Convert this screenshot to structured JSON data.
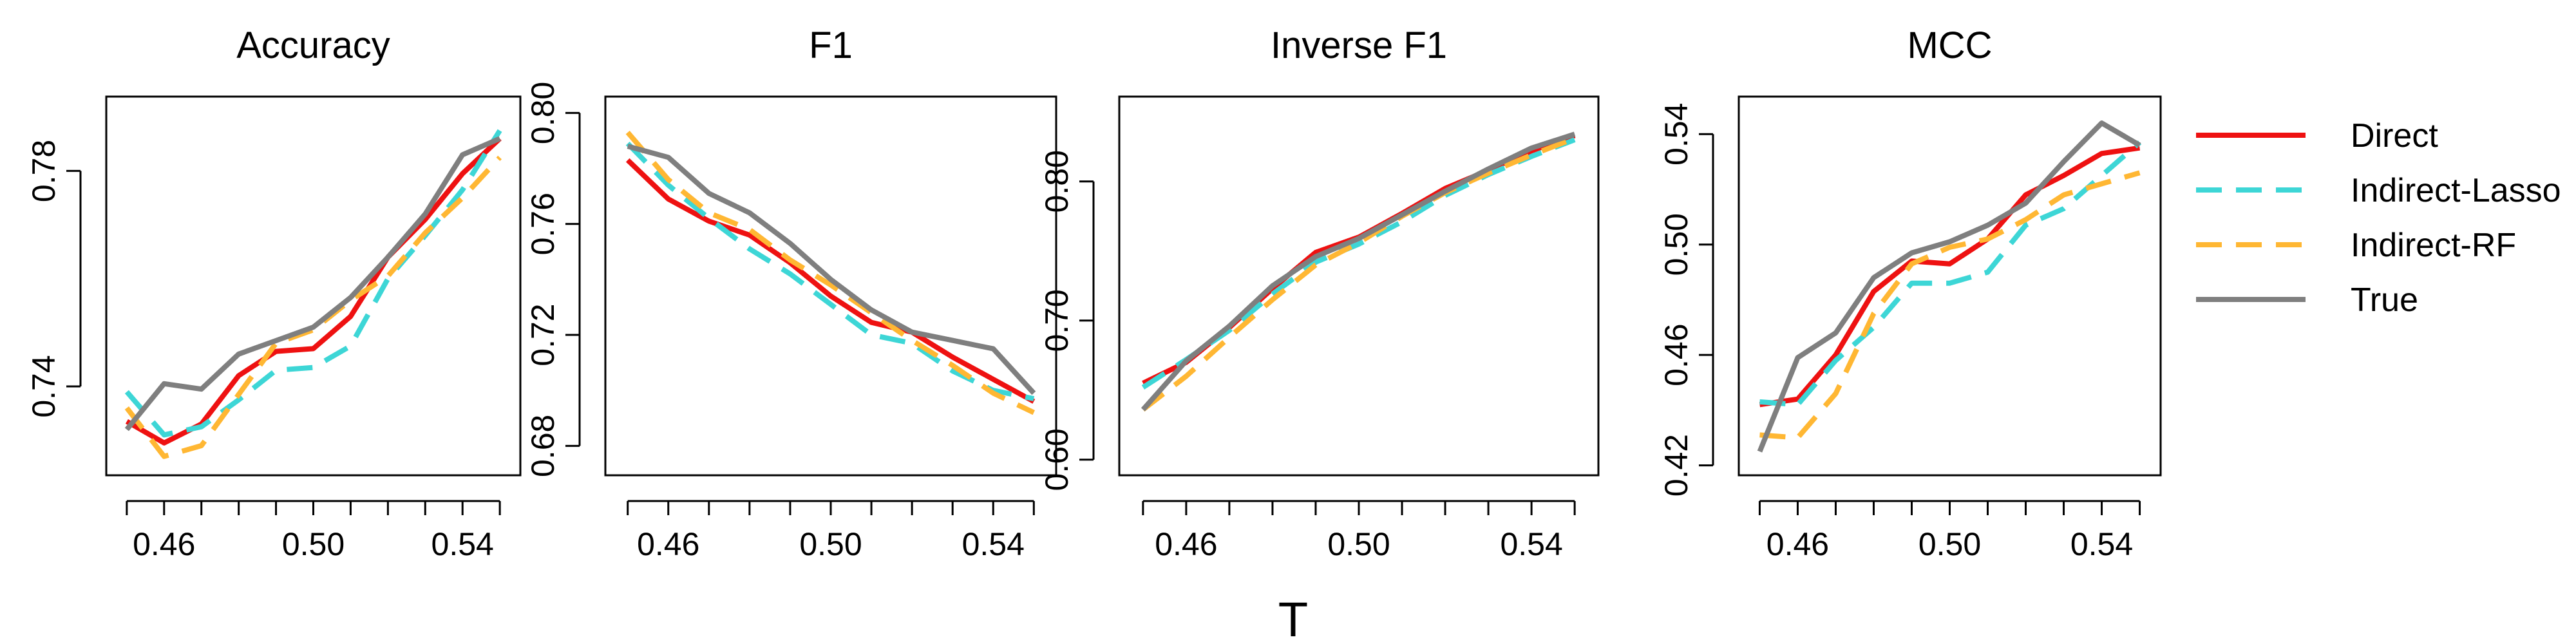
{
  "chart_data": [
    {
      "type": "line",
      "title": "Accuracy",
      "x": [
        0.45,
        0.46,
        0.47,
        0.48,
        0.49,
        0.5,
        0.51,
        0.52,
        0.53,
        0.54,
        0.55
      ],
      "xticks": [
        "0.46",
        "0.50",
        "0.54"
      ],
      "xtick_values": [
        0.46,
        0.5,
        0.54
      ],
      "xlim": [
        0.4445,
        0.5555
      ],
      "yticks": [
        "0.74",
        "0.78"
      ],
      "ytick_values": [
        0.74,
        0.78
      ],
      "ylim": [
        0.7235,
        0.7938
      ],
      "series": [
        {
          "name": "Direct",
          "values": [
            0.7335,
            0.7295,
            0.733,
            0.742,
            0.7465,
            0.747,
            0.753,
            0.764,
            0.771,
            0.7795,
            0.786
          ]
        },
        {
          "name": "Indirect-Lasso",
          "values": [
            0.739,
            0.731,
            0.7325,
            0.7375,
            0.743,
            0.7435,
            0.7475,
            0.76,
            0.768,
            0.7765,
            0.7875
          ]
        },
        {
          "name": "Indirect-RF",
          "values": [
            0.736,
            0.727,
            0.729,
            0.7385,
            0.748,
            0.7505,
            0.756,
            0.7605,
            0.7685,
            0.775,
            0.7825
          ]
        },
        {
          "name": "True",
          "values": [
            0.732,
            0.7405,
            0.7395,
            0.746,
            0.7485,
            0.751,
            0.7565,
            0.764,
            0.772,
            0.783,
            0.786
          ]
        }
      ]
    },
    {
      "type": "line",
      "title": "F1",
      "x": [
        0.45,
        0.46,
        0.47,
        0.48,
        0.49,
        0.5,
        0.51,
        0.52,
        0.53,
        0.54,
        0.55
      ],
      "xticks": [
        "0.46",
        "0.50",
        "0.54"
      ],
      "xtick_values": [
        0.46,
        0.5,
        0.54
      ],
      "xlim": [
        0.4445,
        0.5555
      ],
      "yticks": [
        "0.68",
        "0.72",
        "0.76",
        "0.80"
      ],
      "ytick_values": [
        0.68,
        0.72,
        0.76,
        0.8
      ],
      "ylim": [
        0.6694,
        0.8059
      ],
      "series": [
        {
          "name": "Direct",
          "values": [
            0.783,
            0.769,
            0.761,
            0.756,
            0.746,
            0.734,
            0.7245,
            0.721,
            0.712,
            0.704,
            0.696
          ]
        },
        {
          "name": "Indirect-Lasso",
          "values": [
            0.789,
            0.774,
            0.762,
            0.751,
            0.742,
            0.731,
            0.72,
            0.717,
            0.707,
            0.7,
            0.697
          ]
        },
        {
          "name": "Indirect-RF",
          "values": [
            0.793,
            0.776,
            0.764,
            0.758,
            0.747,
            0.738,
            0.728,
            0.718,
            0.709,
            0.699,
            0.692
          ]
        },
        {
          "name": "True",
          "values": [
            0.788,
            0.784,
            0.771,
            0.764,
            0.753,
            0.74,
            0.729,
            0.721,
            0.718,
            0.715,
            0.699
          ]
        }
      ]
    },
    {
      "type": "line",
      "title": "Inverse F1",
      "x": [
        0.45,
        0.46,
        0.47,
        0.48,
        0.49,
        0.5,
        0.51,
        0.52,
        0.53,
        0.54,
        0.55
      ],
      "xticks": [
        "0.46",
        "0.50",
        "0.54"
      ],
      "xtick_values": [
        0.46,
        0.5,
        0.54
      ],
      "xlim": [
        0.4445,
        0.5555
      ],
      "yticks": [
        "0.60",
        "0.70",
        "0.80"
      ],
      "ytick_values": [
        0.6,
        0.7,
        0.8
      ],
      "ylim": [
        0.5888,
        0.861
      ],
      "series": [
        {
          "name": "Direct",
          "values": [
            0.655,
            0.67,
            0.695,
            0.723,
            0.749,
            0.76,
            0.777,
            0.795,
            0.808,
            0.822,
            0.833
          ]
        },
        {
          "name": "Indirect-Lasso",
          "values": [
            0.652,
            0.672,
            0.693,
            0.719,
            0.742,
            0.755,
            0.771,
            0.79,
            0.805,
            0.818,
            0.83
          ]
        },
        {
          "name": "Indirect-RF",
          "values": [
            0.636,
            0.66,
            0.688,
            0.715,
            0.74,
            0.756,
            0.775,
            0.792,
            0.806,
            0.819,
            0.831
          ]
        },
        {
          "name": "True",
          "values": [
            0.636,
            0.671,
            0.696,
            0.725,
            0.746,
            0.759,
            0.776,
            0.793,
            0.809,
            0.824,
            0.834
          ]
        }
      ]
    },
    {
      "type": "line",
      "title": "MCC",
      "x": [
        0.45,
        0.46,
        0.47,
        0.48,
        0.49,
        0.5,
        0.51,
        0.52,
        0.53,
        0.54,
        0.55
      ],
      "xticks": [
        "0.46",
        "0.50",
        "0.54"
      ],
      "xtick_values": [
        0.46,
        0.5,
        0.54
      ],
      "xlim": [
        0.4445,
        0.5555
      ],
      "yticks": [
        "0.42",
        "0.46",
        "0.50",
        "0.54"
      ],
      "ytick_values": [
        0.42,
        0.46,
        0.5,
        0.54
      ],
      "ylim": [
        0.4164,
        0.5536
      ],
      "series": [
        {
          "name": "Direct",
          "values": [
            0.442,
            0.444,
            0.46,
            0.483,
            0.494,
            0.493,
            0.502,
            0.518,
            0.525,
            0.533,
            0.535
          ]
        },
        {
          "name": "Indirect-Lasso",
          "values": [
            0.443,
            0.442,
            0.458,
            0.47,
            0.486,
            0.486,
            0.49,
            0.507,
            0.513,
            0.525,
            0.537
          ]
        },
        {
          "name": "Indirect-RF",
          "values": [
            0.431,
            0.43,
            0.446,
            0.475,
            0.493,
            0.499,
            0.502,
            0.509,
            0.518,
            0.522,
            0.526
          ]
        },
        {
          "name": "True",
          "values": [
            0.425,
            0.459,
            0.468,
            0.488,
            0.497,
            0.501,
            0.507,
            0.515,
            0.53,
            0.544,
            0.536
          ]
        }
      ]
    }
  ],
  "xlabel": "T",
  "legend": {
    "placement": "right",
    "items": [
      {
        "name": "Direct",
        "color": "#ee1111",
        "style": "solid"
      },
      {
        "name": "Indirect-Lasso",
        "color": "#3dd6d6",
        "style": "dashed"
      },
      {
        "name": "Indirect-RF",
        "color": "#ffb733",
        "style": "dashed"
      },
      {
        "name": "True",
        "color": "#7f7f7f",
        "style": "solid"
      }
    ]
  }
}
